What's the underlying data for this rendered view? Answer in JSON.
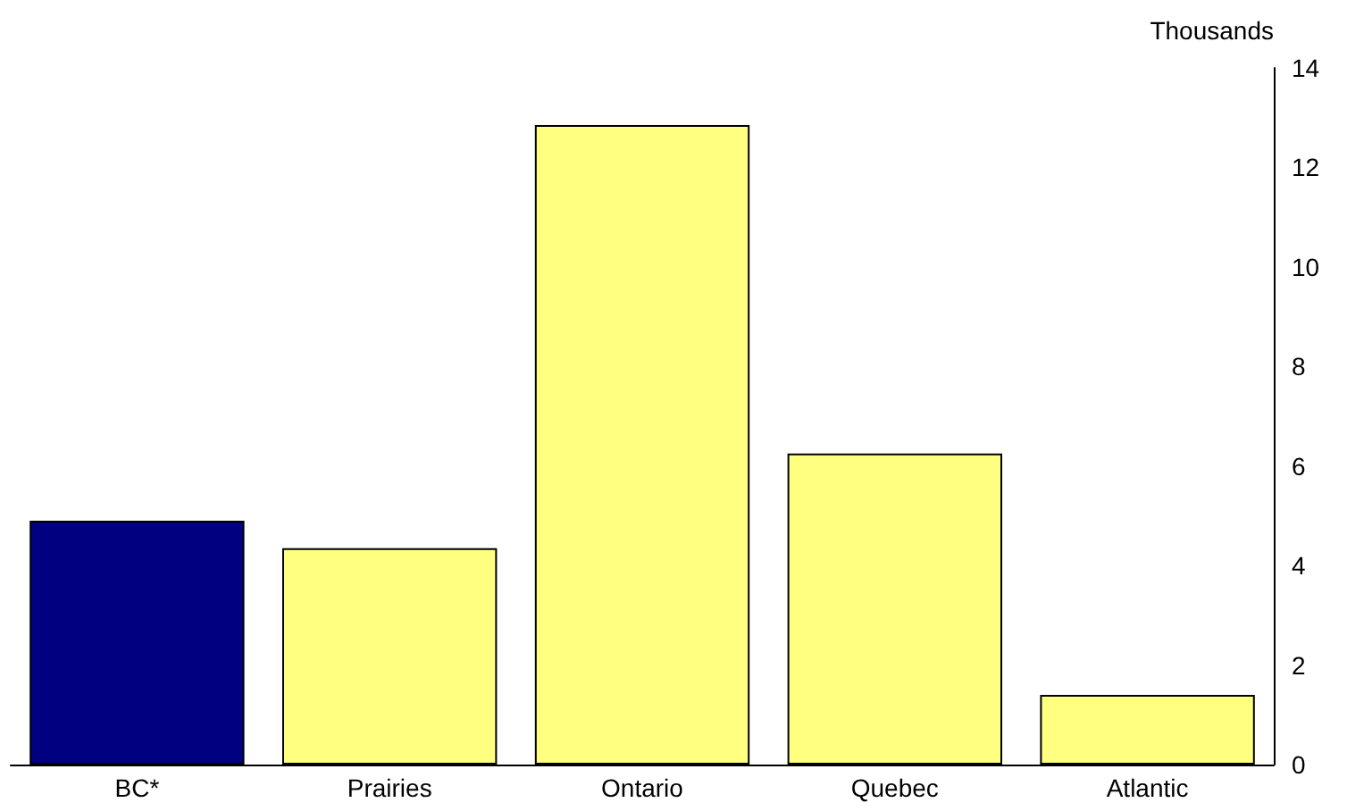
{
  "chart_data": {
    "type": "bar",
    "ylabel": "Thousands",
    "categories": [
      "BC*",
      "Prairies",
      "Ontario",
      "Quebec",
      "Atlantic"
    ],
    "values": [
      4.9,
      4.35,
      12.85,
      6.25,
      1.4
    ],
    "colors": [
      "#000080",
      "#ffff80",
      "#ffff80",
      "#ffff80",
      "#ffff80"
    ],
    "ylim": [
      0,
      14
    ],
    "yticks": [
      0,
      2,
      4,
      6,
      8,
      10,
      12,
      14
    ],
    "grid": false
  }
}
